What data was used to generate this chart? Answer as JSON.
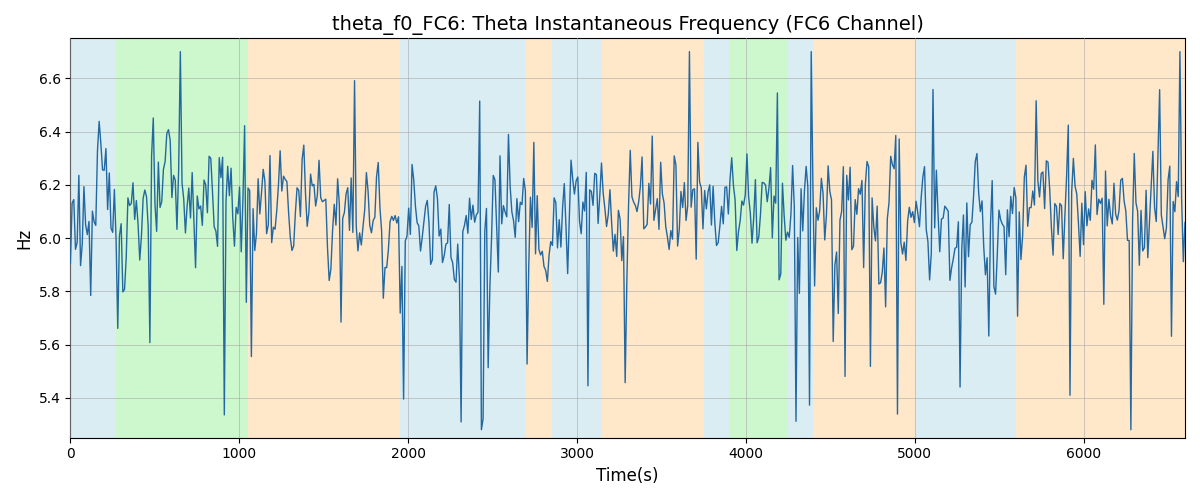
{
  "title": "theta_f0_FC6: Theta Instantaneous Frequency (FC6 Channel)",
  "xlabel": "Time(s)",
  "ylabel": "Hz",
  "xlim": [
    0,
    6600
  ],
  "ylim": [
    5.25,
    6.75
  ],
  "yticks": [
    5.4,
    5.6,
    5.8,
    6.0,
    6.2,
    6.4,
    6.6
  ],
  "xticks": [
    0,
    1000,
    2000,
    3000,
    4000,
    5000,
    6000
  ],
  "line_color": "#2368a0",
  "line_width": 1.0,
  "background_color": "#ffffff",
  "grid_color": "#aaaaaa",
  "figsize": [
    12,
    5
  ],
  "dpi": 100,
  "seed": 123,
  "n_points": 660,
  "regions": [
    {
      "start": 0,
      "end": 270,
      "color": "#add8e6",
      "alpha": 0.45
    },
    {
      "start": 270,
      "end": 1050,
      "color": "#90ee90",
      "alpha": 0.45
    },
    {
      "start": 1050,
      "end": 1950,
      "color": "#ffd59e",
      "alpha": 0.55
    },
    {
      "start": 1950,
      "end": 2700,
      "color": "#add8e6",
      "alpha": 0.45
    },
    {
      "start": 2700,
      "end": 2850,
      "color": "#ffd59e",
      "alpha": 0.55
    },
    {
      "start": 2850,
      "end": 3150,
      "color": "#add8e6",
      "alpha": 0.45
    },
    {
      "start": 3150,
      "end": 3750,
      "color": "#ffd59e",
      "alpha": 0.55
    },
    {
      "start": 3750,
      "end": 3900,
      "color": "#add8e6",
      "alpha": 0.45
    },
    {
      "start": 3900,
      "end": 4250,
      "color": "#90ee90",
      "alpha": 0.45
    },
    {
      "start": 4250,
      "end": 4400,
      "color": "#add8e6",
      "alpha": 0.45
    },
    {
      "start": 4400,
      "end": 5000,
      "color": "#ffd59e",
      "alpha": 0.55
    },
    {
      "start": 5000,
      "end": 5600,
      "color": "#add8e6",
      "alpha": 0.45
    },
    {
      "start": 5600,
      "end": 6600,
      "color": "#ffd59e",
      "alpha": 0.55
    }
  ]
}
